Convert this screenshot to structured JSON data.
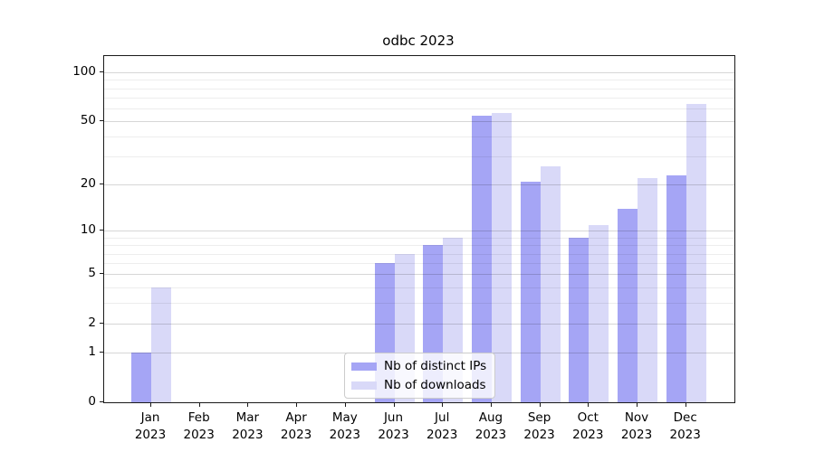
{
  "chart_data": {
    "type": "bar",
    "title": "odbc 2023",
    "categories": [
      "Jan",
      "Feb",
      "Mar",
      "Apr",
      "May",
      "Jun",
      "Jul",
      "Aug",
      "Sep",
      "Oct",
      "Nov",
      "Dec"
    ],
    "year_label": "2023",
    "series": [
      {
        "name": "Nb of distinct IPs",
        "color": "#a5a5f5",
        "values": [
          1,
          0,
          0,
          0,
          0,
          6,
          8,
          54,
          21,
          9,
          14,
          23
        ]
      },
      {
        "name": "Nb of downloads",
        "color": "#d9d9f8",
        "values": [
          4,
          0,
          0,
          0,
          0,
          7,
          9,
          56,
          26,
          11,
          22,
          64
        ]
      }
    ],
    "xlabel": "",
    "ylabel": "",
    "y_scale": "log10(1+x)",
    "ylim": [
      0,
      128
    ],
    "y_ticks": [
      0,
      1,
      2,
      5,
      10,
      20,
      50,
      100
    ],
    "y_major_gridlines": [
      1,
      2,
      5,
      10,
      20,
      50,
      100
    ],
    "y_minor_gridlines": [
      3,
      4,
      6,
      7,
      8,
      9,
      30,
      40,
      60,
      70,
      80,
      90
    ],
    "grid": true,
    "legend_position": "lower center"
  }
}
